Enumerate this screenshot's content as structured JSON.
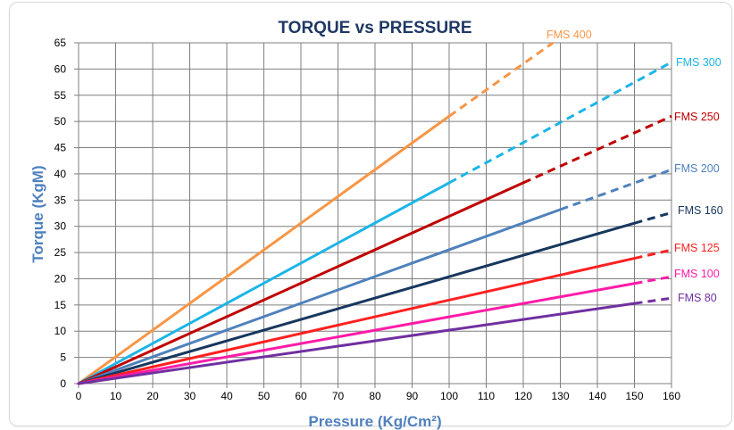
{
  "chart_data": {
    "type": "line",
    "title": "TORQUE vs PRESSURE",
    "xlabel": "Pressure (Kg/Cm²)",
    "ylabel": "Torque (KgM)",
    "xlim": [
      0,
      160
    ],
    "ylim": [
      0,
      65
    ],
    "x_ticks": [
      0,
      10,
      20,
      30,
      40,
      50,
      60,
      70,
      80,
      90,
      100,
      110,
      120,
      130,
      140,
      150,
      160
    ],
    "y_ticks": [
      0,
      5,
      10,
      15,
      20,
      25,
      30,
      35,
      40,
      45,
      50,
      55,
      60,
      65
    ],
    "grid": true,
    "legend": "none",
    "series": [
      {
        "name": "FMS 400",
        "color": "#f79646",
        "solid_x": [
          0,
          100
        ],
        "solid_y": [
          0,
          51
        ],
        "dashed_x": [
          100,
          128
        ],
        "dashed_y": [
          51,
          65
        ]
      },
      {
        "name": "FMS 300",
        "color": "#1cb5e8",
        "solid_x": [
          0,
          100
        ],
        "solid_y": [
          0,
          38.3
        ],
        "dashed_x": [
          100,
          160
        ],
        "dashed_y": [
          38.3,
          61.3
        ]
      },
      {
        "name": "FMS 250",
        "color": "#c00000",
        "solid_x": [
          0,
          120
        ],
        "solid_y": [
          0,
          38.3
        ],
        "dashed_x": [
          120,
          160
        ],
        "dashed_y": [
          38.3,
          51
        ]
      },
      {
        "name": "FMS 200",
        "color": "#4f81bd",
        "solid_x": [
          0,
          130
        ],
        "solid_y": [
          0,
          33.2
        ],
        "dashed_x": [
          130,
          160
        ],
        "dashed_y": [
          33.2,
          40.8
        ]
      },
      {
        "name": "FMS 160",
        "color": "#17375e",
        "solid_x": [
          0,
          150
        ],
        "solid_y": [
          0,
          30.6
        ],
        "dashed_x": [
          150,
          160
        ],
        "dashed_y": [
          30.6,
          32.6
        ]
      },
      {
        "name": "FMS 125",
        "color": "#ff2020",
        "solid_x": [
          0,
          150
        ],
        "solid_y": [
          0,
          23.9
        ],
        "dashed_x": [
          150,
          160
        ],
        "dashed_y": [
          23.9,
          25.5
        ]
      },
      {
        "name": "FMS 100",
        "color": "#ff1ca8",
        "solid_x": [
          0,
          150
        ],
        "solid_y": [
          0,
          19.1
        ],
        "dashed_x": [
          150,
          160
        ],
        "dashed_y": [
          19.1,
          20.4
        ]
      },
      {
        "name": "FMS 80",
        "color": "#7030a0",
        "solid_x": [
          0,
          150
        ],
        "solid_y": [
          0,
          15.3
        ],
        "dashed_x": [
          150,
          160
        ],
        "dashed_y": [
          15.3,
          16.3
        ]
      }
    ]
  }
}
